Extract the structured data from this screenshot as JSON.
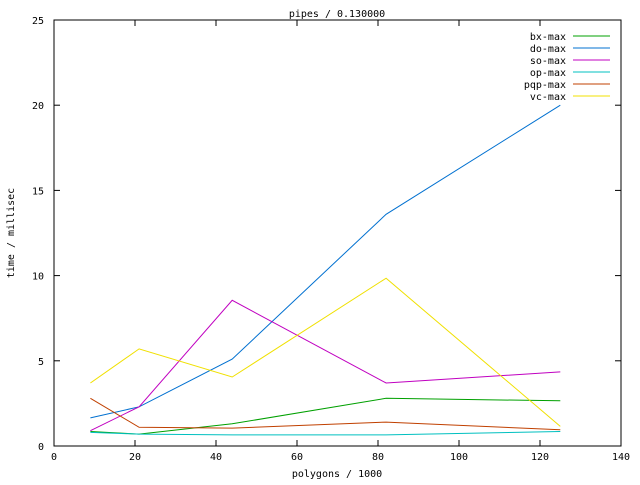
{
  "chart_data": {
    "type": "line",
    "title": "pipes / 0.130000",
    "xlabel": "polygons / 1000",
    "ylabel": "time / millisec",
    "xlim": [
      0,
      140
    ],
    "ylim": [
      0,
      25
    ],
    "xticks": [
      0,
      20,
      40,
      60,
      80,
      100,
      120,
      140
    ],
    "yticks": [
      0,
      5,
      10,
      15,
      20,
      25
    ],
    "grid": false,
    "legend_position": "top-right",
    "series": [
      {
        "name": "bx-max",
        "color": "#00a000",
        "x": [
          9,
          21,
          44,
          82,
          125
        ],
        "y": [
          0.85,
          0.7,
          1.3,
          2.8,
          2.65
        ]
      },
      {
        "name": "do-max",
        "color": "#0070d0",
        "x": [
          9,
          21,
          44,
          82,
          125
        ],
        "y": [
          1.65,
          2.3,
          5.1,
          13.6,
          20.0
        ]
      },
      {
        "name": "so-max",
        "color": "#c000c0",
        "x": [
          9,
          21,
          44,
          82,
          125
        ],
        "y": [
          0.9,
          2.3,
          8.55,
          3.7,
          4.35
        ]
      },
      {
        "name": "op-max",
        "color": "#00c0c0",
        "x": [
          9,
          21,
          44,
          82,
          125
        ],
        "y": [
          0.8,
          0.7,
          0.65,
          0.65,
          0.85
        ]
      },
      {
        "name": "pqp-max",
        "color": "#c04000",
        "x": [
          9,
          21,
          44,
          82,
          125
        ],
        "y": [
          2.8,
          1.1,
          1.05,
          1.4,
          0.95
        ]
      },
      {
        "name": "vc-max",
        "color": "#f0e000",
        "x": [
          9,
          21,
          44,
          82,
          125
        ],
        "y": [
          3.7,
          5.7,
          4.05,
          9.85,
          1.15
        ]
      }
    ]
  }
}
